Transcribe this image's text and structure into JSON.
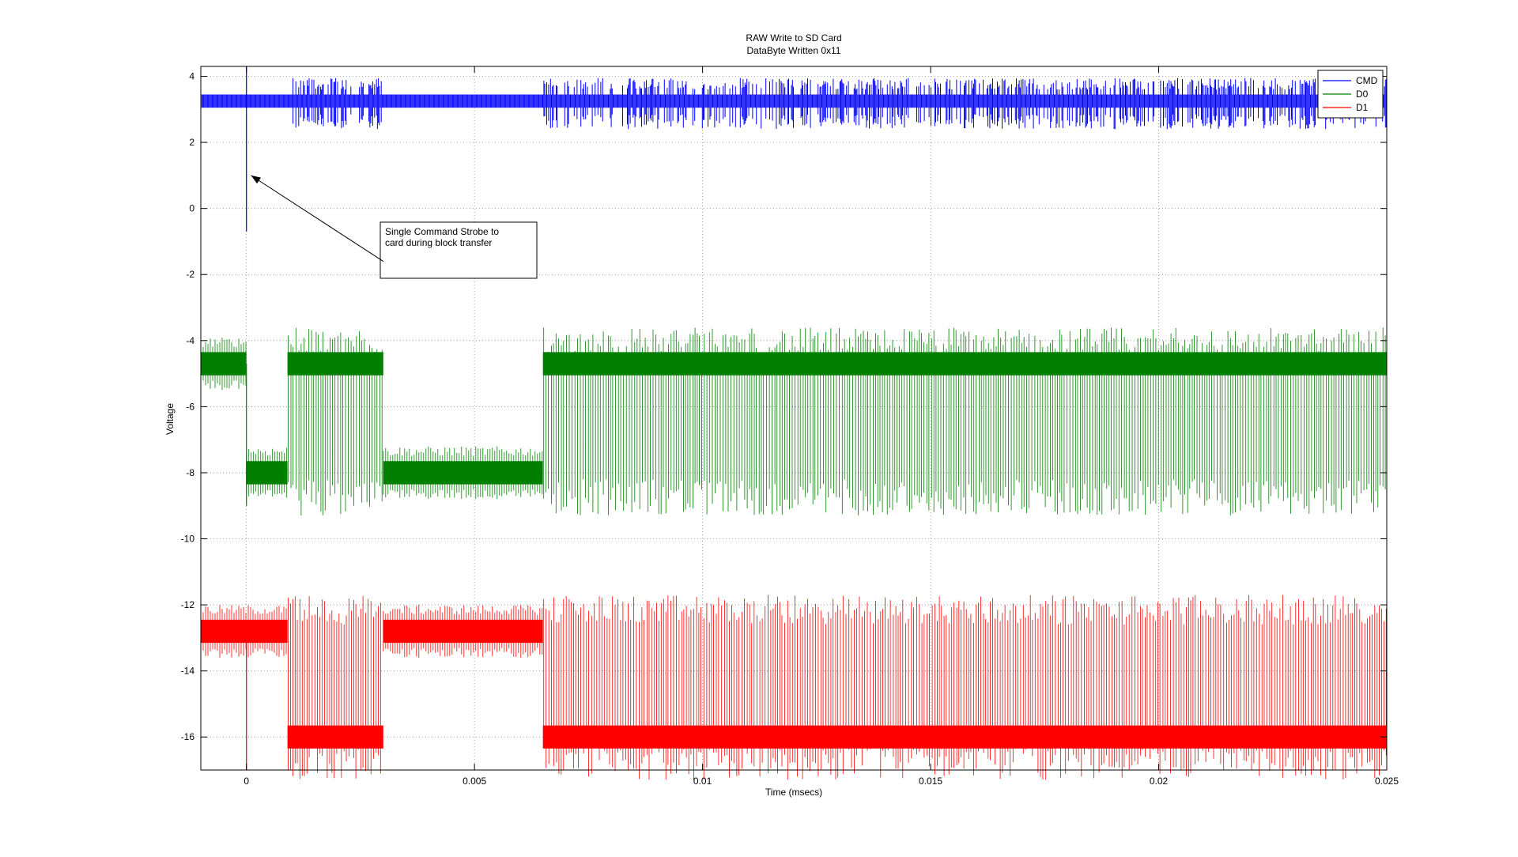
{
  "chart_data": {
    "type": "line",
    "title": "RAW Write to SD Card",
    "subtitle": "DataByte Written 0x11",
    "xlabel": "Time (msecs)",
    "ylabel": "Voltage",
    "xlim": [
      -0.001,
      0.025
    ],
    "ylim": [
      -17,
      4.3
    ],
    "xticks": [
      0,
      0.005,
      0.01,
      0.015,
      0.02,
      0.025
    ],
    "xtick_labels": [
      "0",
      "0.005",
      "0.01",
      "0.015",
      "0.02",
      "0.025"
    ],
    "yticks": [
      4,
      2,
      0,
      -2,
      -4,
      -6,
      -8,
      -10,
      -12,
      -14,
      -16
    ],
    "ytick_labels": [
      "4",
      "2",
      "0",
      "-2",
      "-4",
      "-6",
      "-8",
      "-10",
      "-12",
      "-14",
      "-16"
    ],
    "grid": true,
    "legend_position": "top-right",
    "series": [
      {
        "name": "CMD",
        "color": "#0000ff",
        "baseline": 3.25,
        "noise_band": [
          3.05,
          3.45
        ],
        "spike_min": -0.7,
        "spike_time": 0.0,
        "segments": [
          {
            "x0": -0.001,
            "x1": 0.001,
            "level": 3.25,
            "burst": false
          },
          {
            "x0": 0.001,
            "x1": 0.003,
            "level": 3.25,
            "burst": true
          },
          {
            "x0": 0.003,
            "x1": 0.0065,
            "level": 3.25,
            "burst": false
          },
          {
            "x0": 0.0065,
            "x1": 0.025,
            "level": 3.25,
            "burst": true
          }
        ]
      },
      {
        "name": "D0",
        "color": "#007f00",
        "high_level": -4.7,
        "low_level": -8.0,
        "segments": [
          {
            "x0": -0.001,
            "x1": 0.0,
            "level": -4.7,
            "burst": false
          },
          {
            "x0": 0.0,
            "x1": 0.0009,
            "level": -8.0,
            "burst": false
          },
          {
            "x0": 0.0009,
            "x1": 0.003,
            "level": -4.7,
            "burst": true
          },
          {
            "x0": 0.003,
            "x1": 0.0065,
            "level": -8.0,
            "burst": false
          },
          {
            "x0": 0.0065,
            "x1": 0.025,
            "level": -4.7,
            "burst": true
          }
        ]
      },
      {
        "name": "D1",
        "color": "#ff0000",
        "high_level": -12.8,
        "low_level": -16.0,
        "segments": [
          {
            "x0": -0.001,
            "x1": 0.0009,
            "level": -12.8,
            "burst": false
          },
          {
            "x0": 0.0009,
            "x1": 0.003,
            "level": -16.0,
            "burst": true
          },
          {
            "x0": 0.003,
            "x1": 0.0065,
            "level": -12.8,
            "burst": false
          },
          {
            "x0": 0.0065,
            "x1": 0.025,
            "level": -16.0,
            "burst": true
          }
        ]
      }
    ],
    "annotation": {
      "text_lines": [
        "Single Command Strobe to",
        "card during block transfer"
      ],
      "arrow_from": [
        0.003,
        -1.6
      ],
      "arrow_to": [
        0.0001,
        1.0
      ]
    }
  }
}
